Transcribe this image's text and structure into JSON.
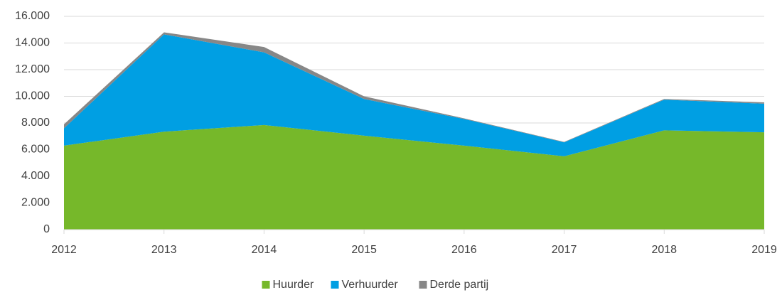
{
  "chart_data": {
    "type": "stacked_area",
    "categories": [
      "2012",
      "2013",
      "2014",
      "2015",
      "2016",
      "2017",
      "2018",
      "2019"
    ],
    "series": [
      {
        "name": "Huurder",
        "color": "#76b82a",
        "values": [
          6300,
          7350,
          7850,
          7050,
          6300,
          5500,
          7450,
          7300
        ]
      },
      {
        "name": "Verhuurder",
        "color": "#009fe3",
        "values": [
          1300,
          7300,
          5450,
          2750,
          2000,
          1050,
          2300,
          2150
        ]
      },
      {
        "name": "Derde partij",
        "color": "#878787",
        "values": [
          300,
          150,
          400,
          200,
          50,
          30,
          50,
          100
        ]
      }
    ],
    "ylim": [
      0,
      16000
    ],
    "yticks": [
      0,
      {
        "value": 2000,
        "label": "2.000"
      },
      {
        "value": 4000,
        "label": "4.000"
      },
      {
        "value": 6000,
        "label": "6.000"
      },
      {
        "value": 8000,
        "label": "8.000"
      },
      {
        "value": 10000,
        "label": "10.000"
      },
      {
        "value": 12000,
        "label": "12.000"
      },
      {
        "value": 14000,
        "label": "14.000"
      },
      {
        "value": 16000,
        "label": "16.000"
      }
    ],
    "grid": true,
    "legend": "bottom"
  }
}
